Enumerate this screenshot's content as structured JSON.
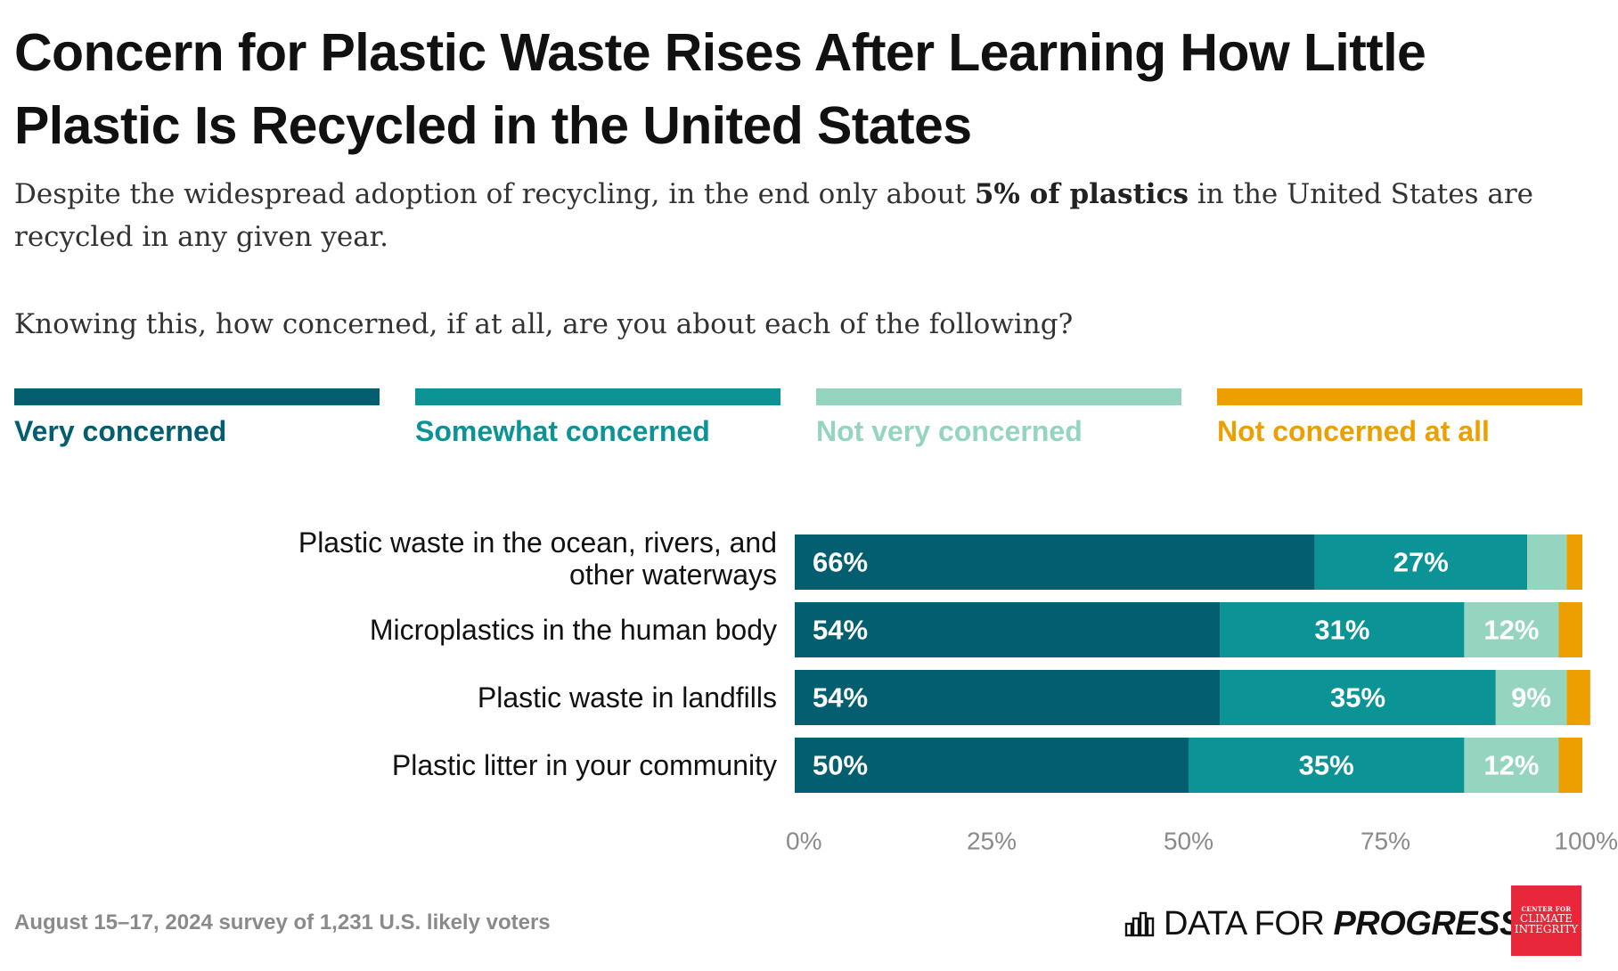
{
  "header": {
    "title": "Concern for Plastic Waste Rises After Learning How Little Plastic Is Recycled in the United States",
    "subtitle_before": "Despite the widespread adoption of recycling, in the end only about ",
    "subtitle_bold": "5% of plastics",
    "subtitle_after": " in the United States are recycled in any given year.",
    "question": "Knowing this, how concerned, if at all, are you about each of the following?"
  },
  "legend": [
    {
      "label": "Very concerned",
      "color": "#035e70"
    },
    {
      "label": "Somewhat concerned",
      "color": "#0b9396"
    },
    {
      "label": "Not very concerned",
      "color": "#95d4bf"
    },
    {
      "label": "Not concerned at all",
      "color": "#ee9f00"
    }
  ],
  "chart_data": {
    "type": "bar",
    "orientation": "horizontal",
    "stacked": true,
    "categories": [
      "Plastic waste in the ocean, rivers, and other waterways",
      "Microplastics in the human body",
      "Plastic waste in landfills",
      "Plastic litter in your community"
    ],
    "series": [
      {
        "name": "Very concerned",
        "color": "#035e70",
        "values": [
          66,
          54,
          54,
          50
        ],
        "labels": [
          "66%",
          "54%",
          "54%",
          "50%"
        ]
      },
      {
        "name": "Somewhat concerned",
        "color": "#0b9396",
        "values": [
          27,
          31,
          35,
          35
        ],
        "labels": [
          "27%",
          "31%",
          "35%",
          "35%"
        ]
      },
      {
        "name": "Not very concerned",
        "color": "#95d4bf",
        "values": [
          5,
          12,
          9,
          12
        ],
        "labels": [
          "",
          "12%",
          "9%",
          "12%"
        ]
      },
      {
        "name": "Not concerned at all",
        "color": "#ee9f00",
        "values": [
          2,
          3,
          3,
          3
        ],
        "labels": [
          "",
          "",
          "",
          ""
        ]
      }
    ],
    "xlim": [
      0,
      100
    ],
    "xticks": [
      0,
      25,
      50,
      75,
      100
    ],
    "xtick_labels": [
      "0%",
      "25%",
      "50%",
      "75%",
      "100%"
    ],
    "grid": false,
    "legend_position": "top"
  },
  "footer": {
    "note": "August 15–17, 2024 survey of 1,231 U.S. likely voters",
    "brand_light": "DATA FOR ",
    "brand_bold": "PROGRESS",
    "partner_line1": "CENTER FOR",
    "partner_line2": "CLIMATE",
    "partner_line3": "INTEGRITY"
  }
}
